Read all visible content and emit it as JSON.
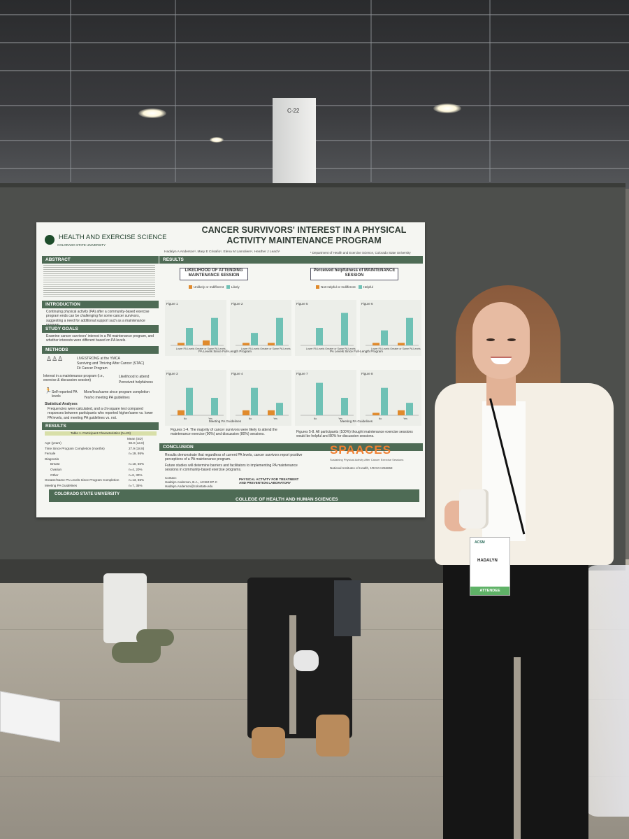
{
  "scene": {
    "booth_sign": "C-22"
  },
  "poster": {
    "title": "CANCER SURVIVORS' INTEREST IN A PHYSICAL ACTIVITY MAINTENANCE PROGRAM",
    "logo": "HEALTH AND EXERCISE SCIENCE",
    "logo_sub": "COLORADO STATE UNIVERSITY",
    "authors": "Hadalyn A Anderson¹, Mary E Crisafio¹, Elena M Lamoliere¹, Heather J Leach¹",
    "department": "¹ Department of Health and Exercise Science, Colorado State University",
    "sections": {
      "abstract": "ABSTRACT",
      "introduction": "INTRODUCTION",
      "study_goals": "STUDY GOALS",
      "methods": "METHODS",
      "results_left": "RESULTS",
      "results": "RESULTS",
      "conclusion": "CONCLUSION"
    },
    "intro_text": "Continuing physical activity (PA) after a community-based exercise program ends can be challenging for some cancer survivors, suggesting a need for additional support such as a maintenance program.",
    "goals_text": "Examine cancer survivors' interest in a PA maintenance program, and whether interests were different based on PA levels.",
    "methods_programs": [
      "LIVESTRONG at the YMCA",
      "Surviving and Thriving After Cancer (STAC)",
      "Fit Cancer Program"
    ],
    "methods_interest": "Interest in a maintenance program (i.e., exercise & discussion session)",
    "methods_outcomes": [
      "Likelihood to attend",
      "Perceived helpfulness"
    ],
    "methods_pa": "Self-reported PA levels",
    "methods_pa_outcomes": [
      "More/less/same since program completion",
      "Yes/no meeting PA guidelines"
    ],
    "stat_heading": "Statistical Analyses",
    "stat_text": "Frequencies were calculated, and a chi-square test compared responses between participants who reported higher/same vs. lower PA levels, and meeting PA guidelines vs. not.",
    "table_title": "Table 1. Participant Characteristics (N=20)",
    "table_col": "Mean (SD)",
    "table_rows": [
      {
        "label": "Age (years)",
        "value": "60.0 (13.0)"
      },
      {
        "label": "Time Since Program Completion (months)",
        "value": "27.9 (18.8)"
      },
      {
        "label": "Female",
        "value": "n=19, 95%"
      },
      {
        "label": "Diagnosis",
        "value": ""
      },
      {
        "label": "Breast",
        "value": "n=10, 50%"
      },
      {
        "label": "Ovarian",
        "value": "n=4, 20%"
      },
      {
        "label": "Other",
        "value": "n=6, 30%"
      },
      {
        "label": "Greater/Same PA Levels Since Program Completion",
        "value": "n=13, 65%"
      },
      {
        "label": "Meeting PA Guidelines",
        "value": "n=7, 35%"
      }
    ],
    "chart_left_title": "LIKELIHOOD OF ATTENDING MAINTENANCE SESSION",
    "chart_right_title": "Perceived helpfulness of MAINTENANCE SESSION",
    "legend_left": [
      "Unlikely or Indifferent",
      "Likely"
    ],
    "legend_right": [
      "Not Helpful or Indifferent",
      "Helpful"
    ],
    "axis_top": "PA Levels Since Full-Length Program",
    "axis_bottom": "Meeting PA Guidelines",
    "cat_top": [
      "Lower PA Levels",
      "Greater or Same PA Levels"
    ],
    "cat_bottom": [
      "No",
      "Yes"
    ],
    "fig_labels": [
      "Figure 1",
      "Figure 2",
      "Figure 3",
      "Figure 4",
      "Figure 5",
      "Figure 6",
      "Figure 7",
      "Figure 8"
    ],
    "caption_left": "Figures 1-4. The majority of cancer survivors were likely to attend the maintenance exercise (90%) and discussion (80%) sessions.",
    "caption_right": "Figures 5-8. All participants (100%) thought maintenance exercise sessions would be helpful and 80% for discussion sessions.",
    "conclusion_points": [
      "Results demonstrate that regardless of current PA levels, cancer survivors report positive perceptions of a PA maintenance program.",
      "Future studies will determine barriers and facilitators to implementing PA maintenance sessions in community-based exercise programs."
    ],
    "contact_label": "Contact:",
    "contact_name": "Hadalyn Anderson, B.A., ACSM EP-C",
    "contact_email": "Hadalyn.Anderson@colostate.edu",
    "lab_name": "PHYSICAL ACTIVITY FOR TREATMENT AND PREVENTION LABORATORY",
    "spaaces": "SPAACES",
    "spaaces_sub": "Sustaining Physical Activity After Cancer Exercise Sessions",
    "grant": "National Institutes of Health, 1R21CA256658",
    "footer_left": "COLORADO STATE UNIVERSITY",
    "footer_right": "COLLEGE OF HEALTH AND HUMAN SCIENCES",
    "colors": {
      "orange": "#e08a2c",
      "teal": "#6fc1b5",
      "green": "#4e6b55"
    }
  },
  "badge": {
    "logo": "ACSM",
    "name": "HADALYN",
    "type": "ATTENDEE"
  }
}
